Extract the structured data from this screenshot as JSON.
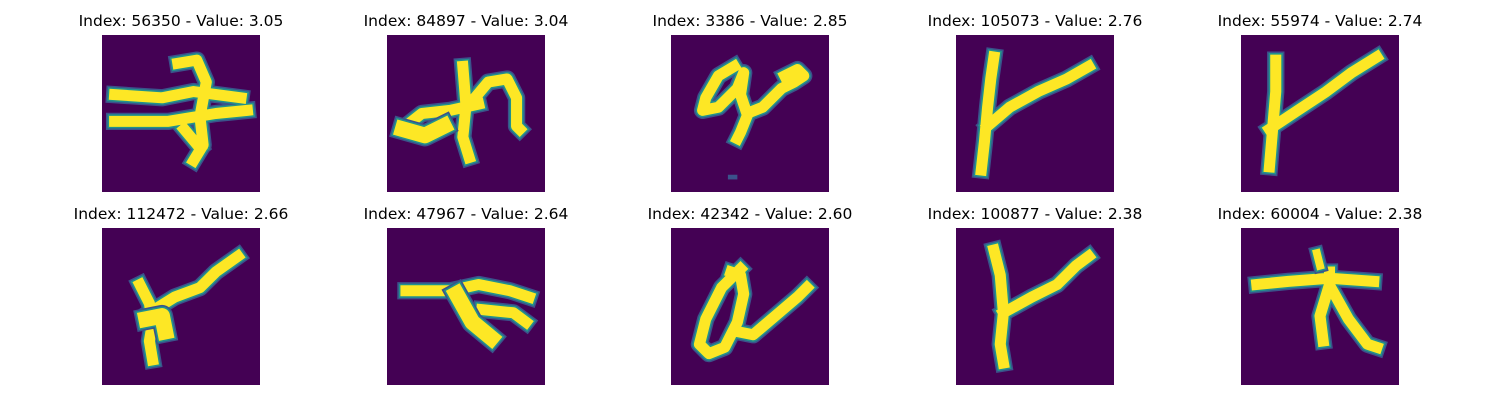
{
  "colors": {
    "background": "#440154",
    "ink": "#fde725",
    "edge": "#21918c",
    "edge_outer": "#3b528b"
  },
  "panels": [
    {
      "title": "Index: 56350 - Value: 3.05"
    },
    {
      "title": "Index: 84897 - Value: 3.04"
    },
    {
      "title": "Index: 3386 - Value: 2.85"
    },
    {
      "title": "Index: 105073 - Value: 2.76"
    },
    {
      "title": "Index: 55974 - Value: 2.74"
    },
    {
      "title": "Index: 112472 - Value: 2.66"
    },
    {
      "title": "Index: 47967 - Value: 2.64"
    },
    {
      "title": "Index: 42342 - Value: 2.60"
    },
    {
      "title": "Index: 100877 - Value: 2.38"
    },
    {
      "title": "Index: 60004 - Value: 2.38"
    }
  ]
}
